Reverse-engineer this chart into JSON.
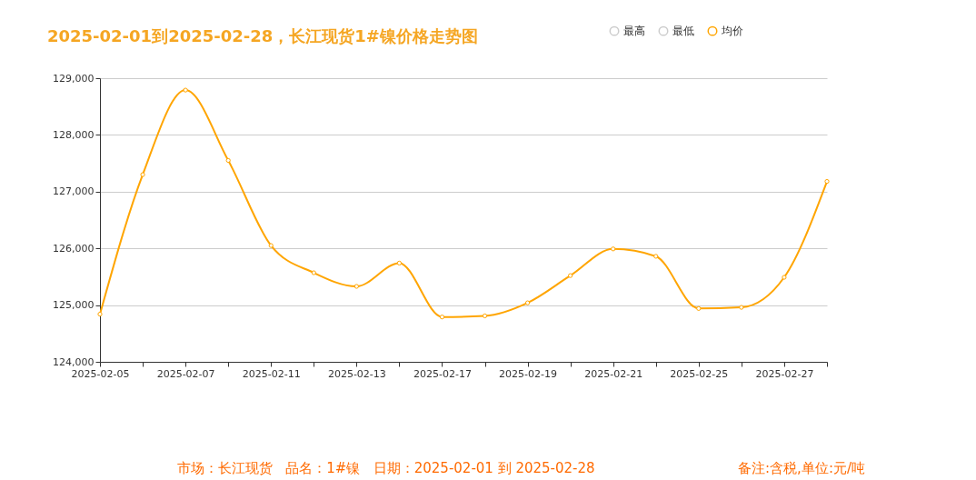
{
  "chart_data": {
    "type": "line",
    "title": "2025-02-01到2025-02-28，长江现货1#镍价格走势图",
    "categories": [
      "2025-02-05",
      null,
      "2025-02-07",
      null,
      "2025-02-11",
      null,
      "2025-02-13",
      null,
      "2025-02-17",
      null,
      "2025-02-19",
      null,
      "2025-02-21",
      null,
      "2025-02-25",
      null,
      "2025-02-27",
      null
    ],
    "series": [
      {
        "name": "最高",
        "color": "#cccccc",
        "values": [
          null,
          null,
          null,
          null,
          null,
          null,
          null,
          null,
          null,
          null,
          null,
          null,
          null,
          null,
          null,
          null,
          null,
          null
        ]
      },
      {
        "name": "最低",
        "color": "#cccccc",
        "values": [
          null,
          null,
          null,
          null,
          null,
          null,
          null,
          null,
          null,
          null,
          null,
          null,
          null,
          null,
          null,
          null,
          null,
          null
        ]
      },
      {
        "name": "均价",
        "color": "#ffa500",
        "values": [
          124840,
          127300,
          128790,
          127550,
          126050,
          125570,
          125330,
          125740,
          124790,
          124810,
          125040,
          125520,
          125990,
          125860,
          124940,
          124960,
          125490,
          127180
        ]
      }
    ],
    "ylim": [
      124000,
      129000
    ],
    "yticks": [
      {
        "value": 124000,
        "label": "124,000"
      },
      {
        "value": 125000,
        "label": "125,000"
      },
      {
        "value": 126000,
        "label": "126,000"
      },
      {
        "value": 127000,
        "label": "127,000"
      },
      {
        "value": 128000,
        "label": "128,000"
      },
      {
        "value": 129000,
        "label": "129,000"
      }
    ],
    "grid": "y",
    "legend": "top right",
    "marker": "circle",
    "line_style": "solid",
    "annotations": [
      "市场：长江现货   品名：1#镍   日期：2025-02-01 到 2025-02-28",
      "备注:含税,单位:元/吨"
    ]
  }
}
